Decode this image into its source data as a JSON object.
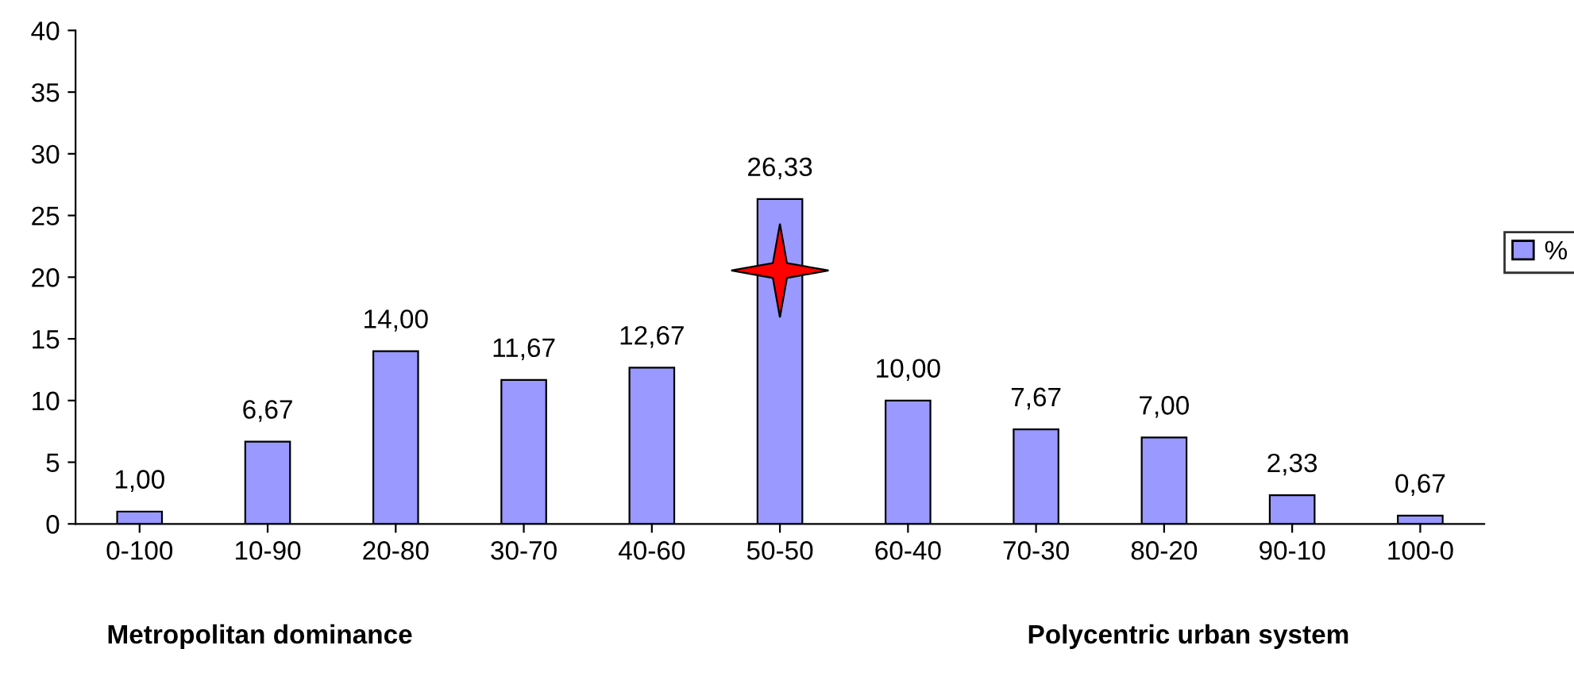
{
  "chart_data": {
    "type": "bar",
    "categories": [
      "0-100",
      "10-90",
      "20-80",
      "30-70",
      "40-60",
      "50-50",
      "60-40",
      "70-30",
      "80-20",
      "90-10",
      "100-0"
    ],
    "series": [
      {
        "name": "%",
        "color": "#9999ff",
        "values": [
          1.0,
          6.67,
          14.0,
          11.67,
          12.67,
          26.33,
          10.0,
          7.67,
          7.0,
          2.33,
          0.67
        ],
        "value_labels": [
          "1,00",
          "6,67",
          "14,00",
          "11,67",
          "12,67",
          "26,33",
          "10,00",
          "7,67",
          "7,00",
          "2,33",
          "0,67"
        ]
      }
    ],
    "ylim": [
      0,
      40
    ],
    "yticks": [
      0,
      5,
      10,
      15,
      20,
      25,
      30,
      35,
      40
    ],
    "annotations": [
      "Metropolitan dominance",
      "Polycentric urban system"
    ],
    "grid": false,
    "legend": "right"
  }
}
